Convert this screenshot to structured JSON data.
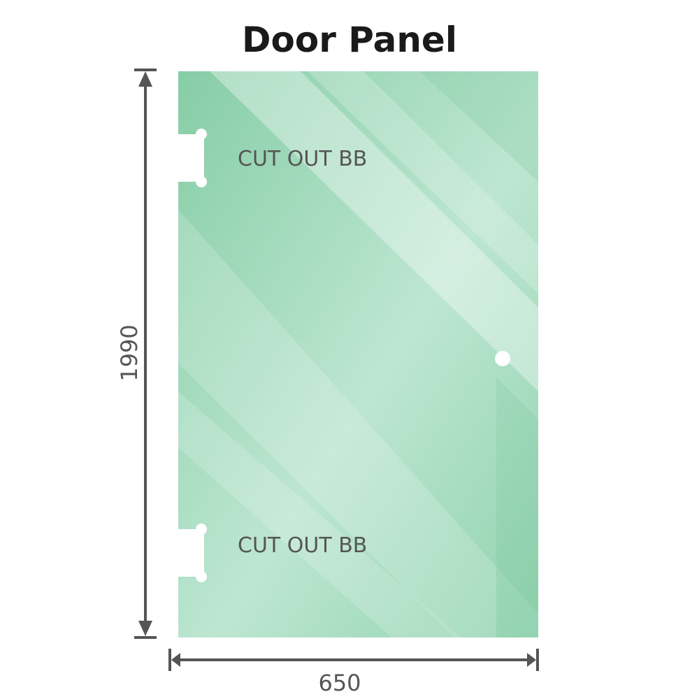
{
  "title": "Door Panel",
  "cutout_label_top": "CUT OUT BB",
  "cutout_label_bottom": "CUT OUT BB",
  "height_dimension": "1990",
  "width_dimension": "650",
  "colors": {
    "glass": "#8fd1ad",
    "glass_light": "#bfe6d2",
    "dimension": "#555555"
  }
}
